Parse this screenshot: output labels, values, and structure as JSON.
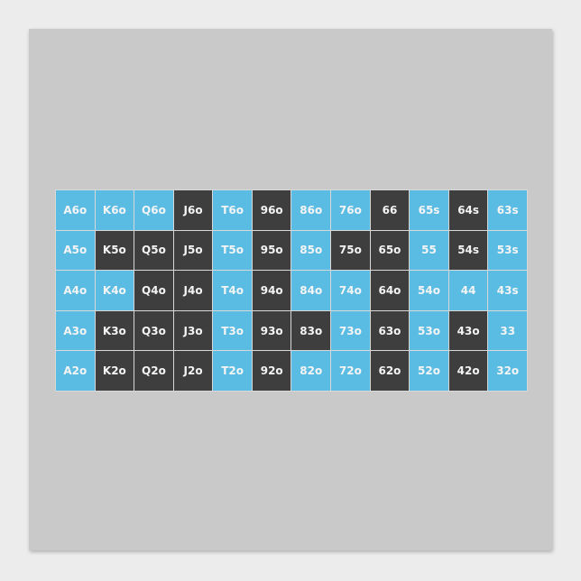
{
  "colors": {
    "blue": "#5bbce3",
    "dark": "#3e3e3e",
    "poster": "#c9c9c9"
  },
  "grid": {
    "rows": [
      {
        "cells": [
          {
            "label": "A6o",
            "c": "b"
          },
          {
            "label": "K6o",
            "c": "b"
          },
          {
            "label": "Q6o",
            "c": "b"
          },
          {
            "label": "J6o",
            "c": "d"
          },
          {
            "label": "T6o",
            "c": "b"
          },
          {
            "label": "96o",
            "c": "d"
          },
          {
            "label": "86o",
            "c": "b"
          },
          {
            "label": "76o",
            "c": "b"
          },
          {
            "label": "66",
            "c": "d"
          },
          {
            "label": "65s",
            "c": "b"
          },
          {
            "label": "64s",
            "c": "d"
          },
          {
            "label": "63s",
            "c": "b"
          }
        ]
      },
      {
        "cells": [
          {
            "label": "A5o",
            "c": "b"
          },
          {
            "label": "K5o",
            "c": "d"
          },
          {
            "label": "Q5o",
            "c": "d"
          },
          {
            "label": "J5o",
            "c": "d"
          },
          {
            "label": "T5o",
            "c": "b"
          },
          {
            "label": "95o",
            "c": "d"
          },
          {
            "label": "85o",
            "c": "b"
          },
          {
            "label": "75o",
            "c": "d"
          },
          {
            "label": "65o",
            "c": "d"
          },
          {
            "label": "55",
            "c": "b"
          },
          {
            "label": "54s",
            "c": "d"
          },
          {
            "label": "53s",
            "c": "b"
          }
        ]
      },
      {
        "cells": [
          {
            "label": "A4o",
            "c": "b"
          },
          {
            "label": "K4o",
            "c": "b"
          },
          {
            "label": "Q4o",
            "c": "d"
          },
          {
            "label": "J4o",
            "c": "d"
          },
          {
            "label": "T4o",
            "c": "b"
          },
          {
            "label": "94o",
            "c": "d"
          },
          {
            "label": "84o",
            "c": "b"
          },
          {
            "label": "74o",
            "c": "b"
          },
          {
            "label": "64o",
            "c": "d"
          },
          {
            "label": "54o",
            "c": "b"
          },
          {
            "label": "44",
            "c": "b"
          },
          {
            "label": "43s",
            "c": "b"
          }
        ]
      },
      {
        "cells": [
          {
            "label": "A3o",
            "c": "b"
          },
          {
            "label": "K3o",
            "c": "d"
          },
          {
            "label": "Q3o",
            "c": "d"
          },
          {
            "label": "J3o",
            "c": "d"
          },
          {
            "label": "T3o",
            "c": "b"
          },
          {
            "label": "93o",
            "c": "d"
          },
          {
            "label": "83o",
            "c": "d"
          },
          {
            "label": "73o",
            "c": "b"
          },
          {
            "label": "63o",
            "c": "d"
          },
          {
            "label": "53o",
            "c": "b"
          },
          {
            "label": "43o",
            "c": "d"
          },
          {
            "label": "33",
            "c": "b"
          }
        ]
      },
      {
        "cells": [
          {
            "label": "A2o",
            "c": "b"
          },
          {
            "label": "K2o",
            "c": "d"
          },
          {
            "label": "Q2o",
            "c": "d"
          },
          {
            "label": "J2o",
            "c": "d"
          },
          {
            "label": "T2o",
            "c": "b"
          },
          {
            "label": "92o",
            "c": "d"
          },
          {
            "label": "82o",
            "c": "b"
          },
          {
            "label": "72o",
            "c": "b"
          },
          {
            "label": "62o",
            "c": "d"
          },
          {
            "label": "52o",
            "c": "b"
          },
          {
            "label": "42o",
            "c": "d"
          },
          {
            "label": "32o",
            "c": "b"
          }
        ]
      }
    ]
  }
}
